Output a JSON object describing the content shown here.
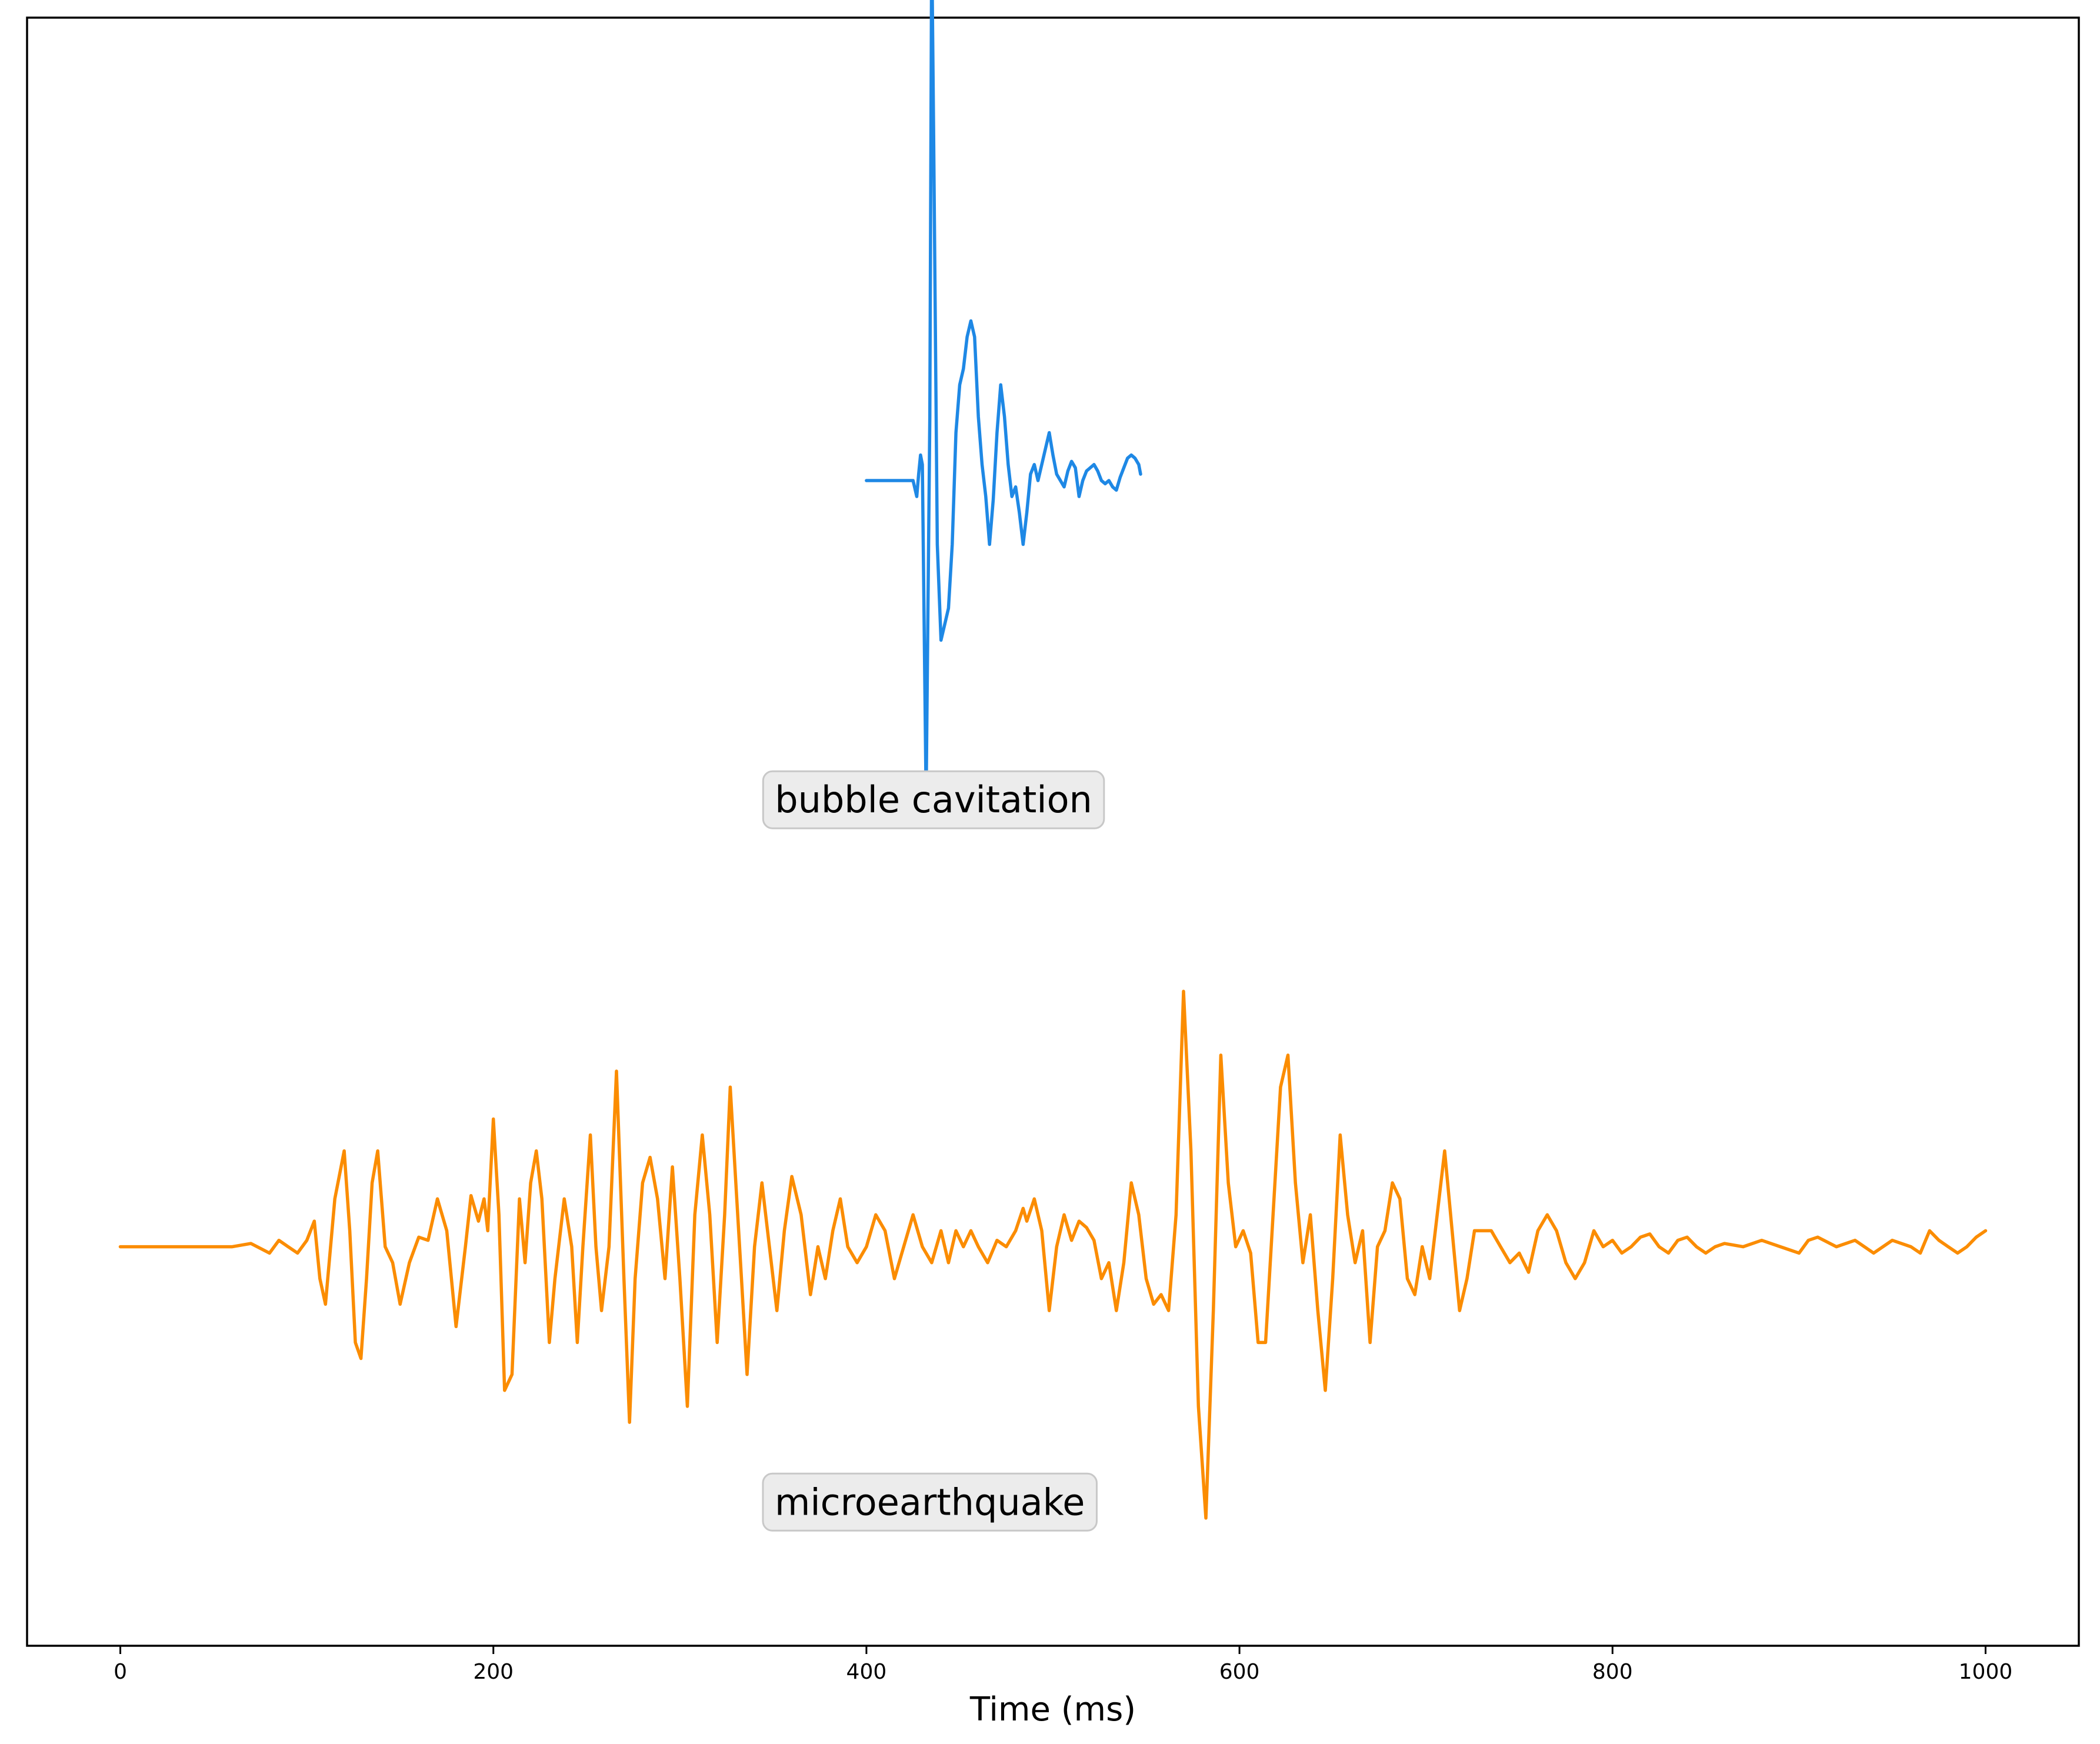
{
  "chart_data": {
    "type": "line",
    "xlabel": "Time (ms)",
    "xlim": [
      -50,
      1050
    ],
    "ylim": [
      -2.55,
      2.55
    ],
    "xticks": [
      0,
      200,
      400,
      600,
      800,
      1000
    ],
    "y_axis_shown": false,
    "grid": false,
    "legend": "none",
    "series": [
      {
        "name": "bubble cavitation",
        "color": "#1e88e5",
        "offset": 1.1,
        "points": [
          [
            400,
            0.0
          ],
          [
            420,
            0.0
          ],
          [
            425,
            0.0
          ],
          [
            427,
            -0.05
          ],
          [
            428,
            0.02
          ],
          [
            429,
            0.08
          ],
          [
            430,
            0.05
          ],
          [
            432,
            -1.0
          ],
          [
            434,
            0.2
          ],
          [
            435,
            1.7
          ],
          [
            436,
            1.1
          ],
          [
            438,
            -0.2
          ],
          [
            440,
            -0.5
          ],
          [
            442,
            -0.45
          ],
          [
            444,
            -0.4
          ],
          [
            446,
            -0.2
          ],
          [
            448,
            0.15
          ],
          [
            450,
            0.3
          ],
          [
            452,
            0.35
          ],
          [
            454,
            0.45
          ],
          [
            456,
            0.5
          ],
          [
            458,
            0.45
          ],
          [
            460,
            0.2
          ],
          [
            462,
            0.05
          ],
          [
            464,
            -0.05
          ],
          [
            466,
            -0.2
          ],
          [
            468,
            -0.06
          ],
          [
            470,
            0.15
          ],
          [
            472,
            0.3
          ],
          [
            474,
            0.2
          ],
          [
            476,
            0.05
          ],
          [
            478,
            -0.05
          ],
          [
            480,
            -0.02
          ],
          [
            482,
            -0.1
          ],
          [
            484,
            -0.2
          ],
          [
            486,
            -0.1
          ],
          [
            488,
            0.02
          ],
          [
            490,
            0.05
          ],
          [
            492,
            0.0
          ],
          [
            494,
            0.05
          ],
          [
            496,
            0.1
          ],
          [
            498,
            0.15
          ],
          [
            500,
            0.08
          ],
          [
            502,
            0.02
          ],
          [
            504,
            0.0
          ],
          [
            506,
            -0.02
          ],
          [
            508,
            0.03
          ],
          [
            510,
            0.06
          ],
          [
            512,
            0.04
          ],
          [
            514,
            -0.05
          ],
          [
            516,
            0.0
          ],
          [
            518,
            0.03
          ],
          [
            520,
            0.04
          ],
          [
            522,
            0.05
          ],
          [
            524,
            0.03
          ],
          [
            526,
            0.0
          ],
          [
            528,
            -0.01
          ],
          [
            530,
            0.0
          ],
          [
            532,
            -0.02
          ],
          [
            534,
            -0.03
          ],
          [
            536,
            0.01
          ],
          [
            538,
            0.04
          ],
          [
            540,
            0.07
          ],
          [
            542,
            0.08
          ],
          [
            544,
            0.07
          ],
          [
            546,
            0.05
          ],
          [
            547,
            0.02
          ]
        ]
      },
      {
        "name": "microearthquake",
        "color": "#fb8c00",
        "offset": -1.3,
        "points": [
          [
            0,
            0.0
          ],
          [
            20,
            0.0
          ],
          [
            40,
            0.0
          ],
          [
            60,
            0.0
          ],
          [
            70,
            0.01
          ],
          [
            80,
            -0.02
          ],
          [
            85,
            0.02
          ],
          [
            90,
            0.0
          ],
          [
            95,
            -0.02
          ],
          [
            100,
            0.02
          ],
          [
            104,
            0.08
          ],
          [
            107,
            -0.1
          ],
          [
            110,
            -0.18
          ],
          [
            115,
            0.15
          ],
          [
            120,
            0.3
          ],
          [
            123,
            0.05
          ],
          [
            126,
            -0.3
          ],
          [
            129,
            -0.35
          ],
          [
            132,
            -0.1
          ],
          [
            135,
            0.2
          ],
          [
            138,
            0.3
          ],
          [
            142,
            0.0
          ],
          [
            146,
            -0.05
          ],
          [
            150,
            -0.18
          ],
          [
            155,
            -0.05
          ],
          [
            160,
            0.03
          ],
          [
            165,
            0.02
          ],
          [
            170,
            0.15
          ],
          [
            175,
            0.05
          ],
          [
            180,
            -0.25
          ],
          [
            185,
            0.0
          ],
          [
            188,
            0.16
          ],
          [
            192,
            0.08
          ],
          [
            195,
            0.15
          ],
          [
            197,
            0.05
          ],
          [
            200,
            0.4
          ],
          [
            203,
            0.1
          ],
          [
            206,
            -0.45
          ],
          [
            210,
            -0.4
          ],
          [
            214,
            0.15
          ],
          [
            217,
            -0.05
          ],
          [
            220,
            0.2
          ],
          [
            223,
            0.3
          ],
          [
            226,
            0.15
          ],
          [
            230,
            -0.3
          ],
          [
            233,
            -0.1
          ],
          [
            238,
            0.15
          ],
          [
            242,
            0.0
          ],
          [
            245,
            -0.3
          ],
          [
            248,
            0.0
          ],
          [
            252,
            0.35
          ],
          [
            255,
            0.0
          ],
          [
            258,
            -0.2
          ],
          [
            262,
            0.0
          ],
          [
            266,
            0.55
          ],
          [
            270,
            -0.1
          ],
          [
            273,
            -0.55
          ],
          [
            276,
            -0.1
          ],
          [
            280,
            0.2
          ],
          [
            284,
            0.28
          ],
          [
            288,
            0.15
          ],
          [
            292,
            -0.1
          ],
          [
            296,
            0.25
          ],
          [
            300,
            -0.1
          ],
          [
            304,
            -0.5
          ],
          [
            308,
            0.1
          ],
          [
            312,
            0.35
          ],
          [
            316,
            0.1
          ],
          [
            320,
            -0.3
          ],
          [
            324,
            0.1
          ],
          [
            327,
            0.5
          ],
          [
            330,
            0.2
          ],
          [
            333,
            -0.1
          ],
          [
            336,
            -0.4
          ],
          [
            340,
            0.0
          ],
          [
            344,
            0.2
          ],
          [
            348,
            0.0
          ],
          [
            352,
            -0.2
          ],
          [
            356,
            0.05
          ],
          [
            360,
            0.22
          ],
          [
            365,
            0.1
          ],
          [
            370,
            -0.15
          ],
          [
            374,
            0.0
          ],
          [
            378,
            -0.1
          ],
          [
            382,
            0.05
          ],
          [
            386,
            0.15
          ],
          [
            390,
            0.0
          ],
          [
            395,
            -0.05
          ],
          [
            400,
            0.0
          ],
          [
            405,
            0.1
          ],
          [
            410,
            0.05
          ],
          [
            415,
            -0.1
          ],
          [
            420,
            0.0
          ],
          [
            425,
            0.1
          ],
          [
            430,
            0.0
          ],
          [
            435,
            -0.05
          ],
          [
            440,
            0.05
          ],
          [
            444,
            -0.05
          ],
          [
            448,
            0.05
          ],
          [
            452,
            0.0
          ],
          [
            456,
            0.05
          ],
          [
            460,
            0.0
          ],
          [
            465,
            -0.05
          ],
          [
            470,
            0.02
          ],
          [
            475,
            0.0
          ],
          [
            480,
            0.05
          ],
          [
            484,
            0.12
          ],
          [
            486,
            0.08
          ],
          [
            490,
            0.15
          ],
          [
            494,
            0.05
          ],
          [
            498,
            -0.2
          ],
          [
            502,
            0.0
          ],
          [
            506,
            0.1
          ],
          [
            510,
            0.02
          ],
          [
            514,
            0.08
          ],
          [
            518,
            0.06
          ],
          [
            522,
            0.02
          ],
          [
            526,
            -0.1
          ],
          [
            530,
            -0.05
          ],
          [
            534,
            -0.2
          ],
          [
            538,
            -0.05
          ],
          [
            542,
            0.2
          ],
          [
            546,
            0.1
          ],
          [
            550,
            -0.1
          ],
          [
            554,
            -0.18
          ],
          [
            558,
            -0.15
          ],
          [
            562,
            -0.2
          ],
          [
            566,
            0.1
          ],
          [
            570,
            0.8
          ],
          [
            574,
            0.3
          ],
          [
            578,
            -0.5
          ],
          [
            582,
            -0.85
          ],
          [
            586,
            -0.2
          ],
          [
            590,
            0.6
          ],
          [
            594,
            0.2
          ],
          [
            598,
            0.0
          ],
          [
            602,
            0.05
          ],
          [
            606,
            -0.02
          ],
          [
            610,
            -0.3
          ],
          [
            614,
            -0.3
          ],
          [
            618,
            0.1
          ],
          [
            622,
            0.5
          ],
          [
            626,
            0.6
          ],
          [
            630,
            0.2
          ],
          [
            634,
            -0.05
          ],
          [
            638,
            0.1
          ],
          [
            642,
            -0.2
          ],
          [
            646,
            -0.45
          ],
          [
            650,
            -0.1
          ],
          [
            654,
            0.35
          ],
          [
            658,
            0.1
          ],
          [
            662,
            -0.05
          ],
          [
            666,
            0.05
          ],
          [
            670,
            -0.3
          ],
          [
            674,
            0.0
          ],
          [
            678,
            0.05
          ],
          [
            682,
            0.2
          ],
          [
            686,
            0.15
          ],
          [
            690,
            -0.1
          ],
          [
            694,
            -0.15
          ],
          [
            698,
            0.0
          ],
          [
            702,
            -0.1
          ],
          [
            706,
            0.1
          ],
          [
            710,
            0.3
          ],
          [
            714,
            0.05
          ],
          [
            718,
            -0.2
          ],
          [
            722,
            -0.1
          ],
          [
            726,
            0.05
          ],
          [
            730,
            0.05
          ],
          [
            735,
            0.05
          ],
          [
            740,
            0.0
          ],
          [
            745,
            -0.05
          ],
          [
            750,
            -0.02
          ],
          [
            755,
            -0.08
          ],
          [
            760,
            0.05
          ],
          [
            765,
            0.1
          ],
          [
            770,
            0.05
          ],
          [
            775,
            -0.05
          ],
          [
            780,
            -0.1
          ],
          [
            785,
            -0.05
          ],
          [
            790,
            0.05
          ],
          [
            795,
            0.0
          ],
          [
            800,
            0.02
          ],
          [
            805,
            -0.02
          ],
          [
            810,
            0.0
          ],
          [
            815,
            0.03
          ],
          [
            820,
            0.04
          ],
          [
            825,
            0.0
          ],
          [
            830,
            -0.02
          ],
          [
            835,
            0.02
          ],
          [
            840,
            0.03
          ],
          [
            845,
            0.0
          ],
          [
            850,
            -0.02
          ],
          [
            855,
            0.0
          ],
          [
            860,
            0.01
          ],
          [
            870,
            0.0
          ],
          [
            880,
            0.02
          ],
          [
            890,
            0.0
          ],
          [
            900,
            -0.02
          ],
          [
            905,
            0.02
          ],
          [
            910,
            0.03
          ],
          [
            920,
            0.0
          ],
          [
            930,
            0.02
          ],
          [
            940,
            -0.02
          ],
          [
            950,
            0.02
          ],
          [
            960,
            0.0
          ],
          [
            965,
            -0.02
          ],
          [
            970,
            0.05
          ],
          [
            975,
            0.02
          ],
          [
            980,
            0.0
          ],
          [
            985,
            -0.02
          ],
          [
            990,
            0.0
          ],
          [
            995,
            0.03
          ],
          [
            1000,
            0.05
          ]
        ]
      }
    ],
    "annotations": [
      {
        "text": "bubble cavitation",
        "x": 436,
        "y": 0.1
      },
      {
        "text": "microearthquake",
        "x": 434,
        "y": -2.1
      }
    ]
  }
}
